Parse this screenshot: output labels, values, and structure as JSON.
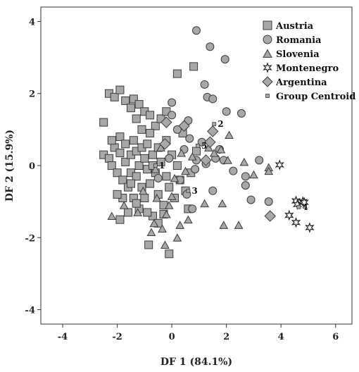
{
  "chart_data": {
    "type": "scatter",
    "xlabel": "DF 1 (84.1%)",
    "ylabel": "DF 2 (15.9%)",
    "xlim": [
      -4.8,
      6.6
    ],
    "ylim": [
      -4.4,
      4.4
    ],
    "xticks": [
      -4,
      -2,
      0,
      2,
      4,
      6
    ],
    "yticks": [
      -4,
      -2,
      0,
      2,
      4
    ],
    "x_tick_labels": [
      "-4",
      "-2",
      "0",
      "2",
      "4",
      "6"
    ],
    "y_tick_labels": [
      "-4",
      "-2",
      "0",
      "2",
      "4"
    ],
    "grid": false,
    "legend_position": "top-right",
    "colors": {
      "marker_fill": "#a8a8a8",
      "marker_stroke": "#3a3a3a",
      "axis": "#333333"
    },
    "series": [
      {
        "name": "Austria",
        "marker": "square",
        "points": [
          [
            -2.5,
            1.2
          ],
          [
            -2.3,
            2.0
          ],
          [
            -2.1,
            1.9
          ],
          [
            -1.9,
            2.1
          ],
          [
            -1.7,
            1.8
          ],
          [
            -1.5,
            1.6
          ],
          [
            -1.4,
            1.85
          ],
          [
            -1.2,
            1.7
          ],
          [
            -1.3,
            1.3
          ],
          [
            -1.0,
            1.5
          ],
          [
            -0.8,
            1.4
          ],
          [
            -0.6,
            1.1
          ],
          [
            -0.4,
            1.3
          ],
          [
            -0.2,
            1.5
          ],
          [
            0.2,
            2.55
          ],
          [
            0.8,
            2.75
          ],
          [
            -2.5,
            0.3
          ],
          [
            -2.3,
            0.2
          ],
          [
            -2.2,
            0.0
          ],
          [
            -2.1,
            0.5
          ],
          [
            -2.0,
            -0.2
          ],
          [
            -1.9,
            0.8
          ],
          [
            -1.9,
            0.35
          ],
          [
            -1.8,
            -0.4
          ],
          [
            -1.7,
            0.6
          ],
          [
            -1.7,
            0.1
          ],
          [
            -1.6,
            -0.6
          ],
          [
            -1.5,
            0.3
          ],
          [
            -1.5,
            -0.2
          ],
          [
            -1.4,
            0.7
          ],
          [
            -1.4,
            -0.9
          ],
          [
            -1.3,
            0.4
          ],
          [
            -1.3,
            -0.3
          ],
          [
            -1.2,
            0.0
          ],
          [
            -1.2,
            -1.2
          ],
          [
            -1.1,
            0.5
          ],
          [
            -1.1,
            -0.6
          ],
          [
            -1.0,
            0.2
          ],
          [
            -1.0,
            -0.9
          ],
          [
            -0.9,
            0.6
          ],
          [
            -0.9,
            -0.1
          ],
          [
            -0.8,
            -0.5
          ],
          [
            -0.8,
            0.9
          ],
          [
            -0.7,
            0.3
          ],
          [
            -0.7,
            -1.4
          ],
          [
            -0.6,
            -0.2
          ],
          [
            -0.5,
            0.5
          ],
          [
            -0.5,
            -0.8
          ],
          [
            -0.4,
            0.1
          ],
          [
            -0.3,
            -1.1
          ],
          [
            -0.2,
            0.7
          ],
          [
            -0.2,
            -0.3
          ],
          [
            -0.1,
            -0.6
          ],
          [
            0.0,
            0.3
          ],
          [
            0.1,
            -0.9
          ],
          [
            0.2,
            0.0
          ],
          [
            0.3,
            -0.4
          ],
          [
            0.5,
            -0.7
          ],
          [
            -1.8,
            -0.9
          ],
          [
            -1.6,
            -1.3
          ],
          [
            -1.9,
            -1.5
          ],
          [
            -0.9,
            -1.3
          ],
          [
            -0.5,
            -1.6
          ],
          [
            -0.85,
            -2.2
          ],
          [
            -0.1,
            -2.45
          ],
          [
            0.6,
            -1.2
          ],
          [
            0.4,
            0.9
          ],
          [
            -2.2,
            0.7
          ],
          [
            -1.1,
            1.0
          ],
          [
            -0.7,
            0.0
          ],
          [
            -1.5,
            -0.5
          ],
          [
            -2.0,
            -0.8
          ],
          [
            -1.3,
            -1.05
          ],
          [
            -0.3,
            -1.35
          ],
          [
            0.7,
            -0.2
          ],
          [
            0.9,
            0.4
          ]
        ]
      },
      {
        "name": "Romania",
        "marker": "circle",
        "points": [
          [
            0.9,
            3.75
          ],
          [
            1.4,
            3.3
          ],
          [
            1.95,
            2.95
          ],
          [
            1.2,
            2.25
          ],
          [
            1.3,
            1.9
          ],
          [
            1.5,
            1.85
          ],
          [
            2.0,
            1.5
          ],
          [
            2.55,
            1.45
          ],
          [
            0.0,
            1.75
          ],
          [
            0.0,
            1.4
          ],
          [
            0.6,
            1.25
          ],
          [
            0.2,
            1.0
          ],
          [
            0.65,
            0.75
          ],
          [
            1.1,
            0.65
          ],
          [
            1.75,
            0.45
          ],
          [
            1.9,
            0.15
          ],
          [
            1.25,
            0.05
          ],
          [
            0.85,
            -0.1
          ],
          [
            0.3,
            -0.4
          ],
          [
            0.55,
            -0.8
          ],
          [
            0.75,
            -1.2
          ],
          [
            1.5,
            -0.7
          ],
          [
            2.25,
            -0.15
          ],
          [
            3.2,
            0.15
          ],
          [
            2.7,
            -0.3
          ],
          [
            2.7,
            -0.55
          ],
          [
            2.9,
            -0.95
          ],
          [
            3.55,
            -1.0
          ],
          [
            0.9,
            0.15
          ],
          [
            0.45,
            0.45
          ],
          [
            -0.1,
            0.2
          ],
          [
            -0.5,
            -0.35
          ],
          [
            1.6,
            0.2
          ]
        ]
      },
      {
        "name": "Slovenia",
        "marker": "triangle",
        "points": [
          [
            -2.2,
            -1.4
          ],
          [
            -1.75,
            -1.1
          ],
          [
            -1.25,
            -1.3
          ],
          [
            -0.65,
            -1.6
          ],
          [
            -0.35,
            -1.75
          ],
          [
            -0.75,
            -1.85
          ],
          [
            0.2,
            -2.0
          ],
          [
            -0.25,
            -2.2
          ],
          [
            0.3,
            -1.65
          ],
          [
            -0.1,
            -1.1
          ],
          [
            0.6,
            -1.5
          ],
          [
            -0.55,
            -0.9
          ],
          [
            0.1,
            -0.35
          ],
          [
            -0.6,
            -0.1
          ],
          [
            0.35,
            0.35
          ],
          [
            0.75,
            0.25
          ],
          [
            1.35,
            0.5
          ],
          [
            1.55,
            0.35
          ],
          [
            1.8,
            0.45
          ],
          [
            2.1,
            0.85
          ],
          [
            2.05,
            0.15
          ],
          [
            2.65,
            0.1
          ],
          [
            3.0,
            -0.25
          ],
          [
            3.55,
            -0.05
          ],
          [
            3.55,
            -0.15
          ],
          [
            2.45,
            -1.65
          ],
          [
            1.85,
            -1.05
          ],
          [
            1.9,
            -1.65
          ],
          [
            1.2,
            -1.05
          ],
          [
            -0.4,
            0.5
          ],
          [
            -1.05,
            -0.7
          ],
          [
            0.0,
            -0.85
          ],
          [
            0.5,
            -0.15
          ],
          [
            -0.2,
            -1.35
          ]
        ]
      },
      {
        "name": "Montenegro",
        "marker": "star",
        "points": [
          [
            3.95,
            0.02
          ],
          [
            4.55,
            -0.98
          ],
          [
            4.6,
            -1.08
          ],
          [
            4.8,
            -1.0
          ],
          [
            4.85,
            -1.02
          ],
          [
            4.3,
            -1.38
          ],
          [
            4.55,
            -1.58
          ],
          [
            5.05,
            -1.72
          ]
        ]
      },
      {
        "name": "Argentina",
        "marker": "diamond",
        "points": [
          [
            -0.2,
            1.2
          ],
          [
            0.45,
            1.1
          ],
          [
            1.5,
            0.95
          ],
          [
            1.4,
            0.65
          ],
          [
            -0.25,
            0.6
          ],
          [
            1.25,
            0.15
          ],
          [
            3.6,
            -1.4
          ]
        ]
      }
    ],
    "group_centroids": {
      "name": "Group Centroid",
      "marker": "small-square",
      "points": [
        {
          "x": -0.6,
          "y": 0.0,
          "label": "1"
        },
        {
          "x": 1.55,
          "y": 1.15,
          "label": "2"
        },
        {
          "x": 0.6,
          "y": -0.7,
          "label": "3"
        },
        {
          "x": 4.65,
          "y": -1.15,
          "label": "4"
        },
        {
          "x": 0.95,
          "y": 0.55,
          "label": "5"
        }
      ]
    }
  }
}
